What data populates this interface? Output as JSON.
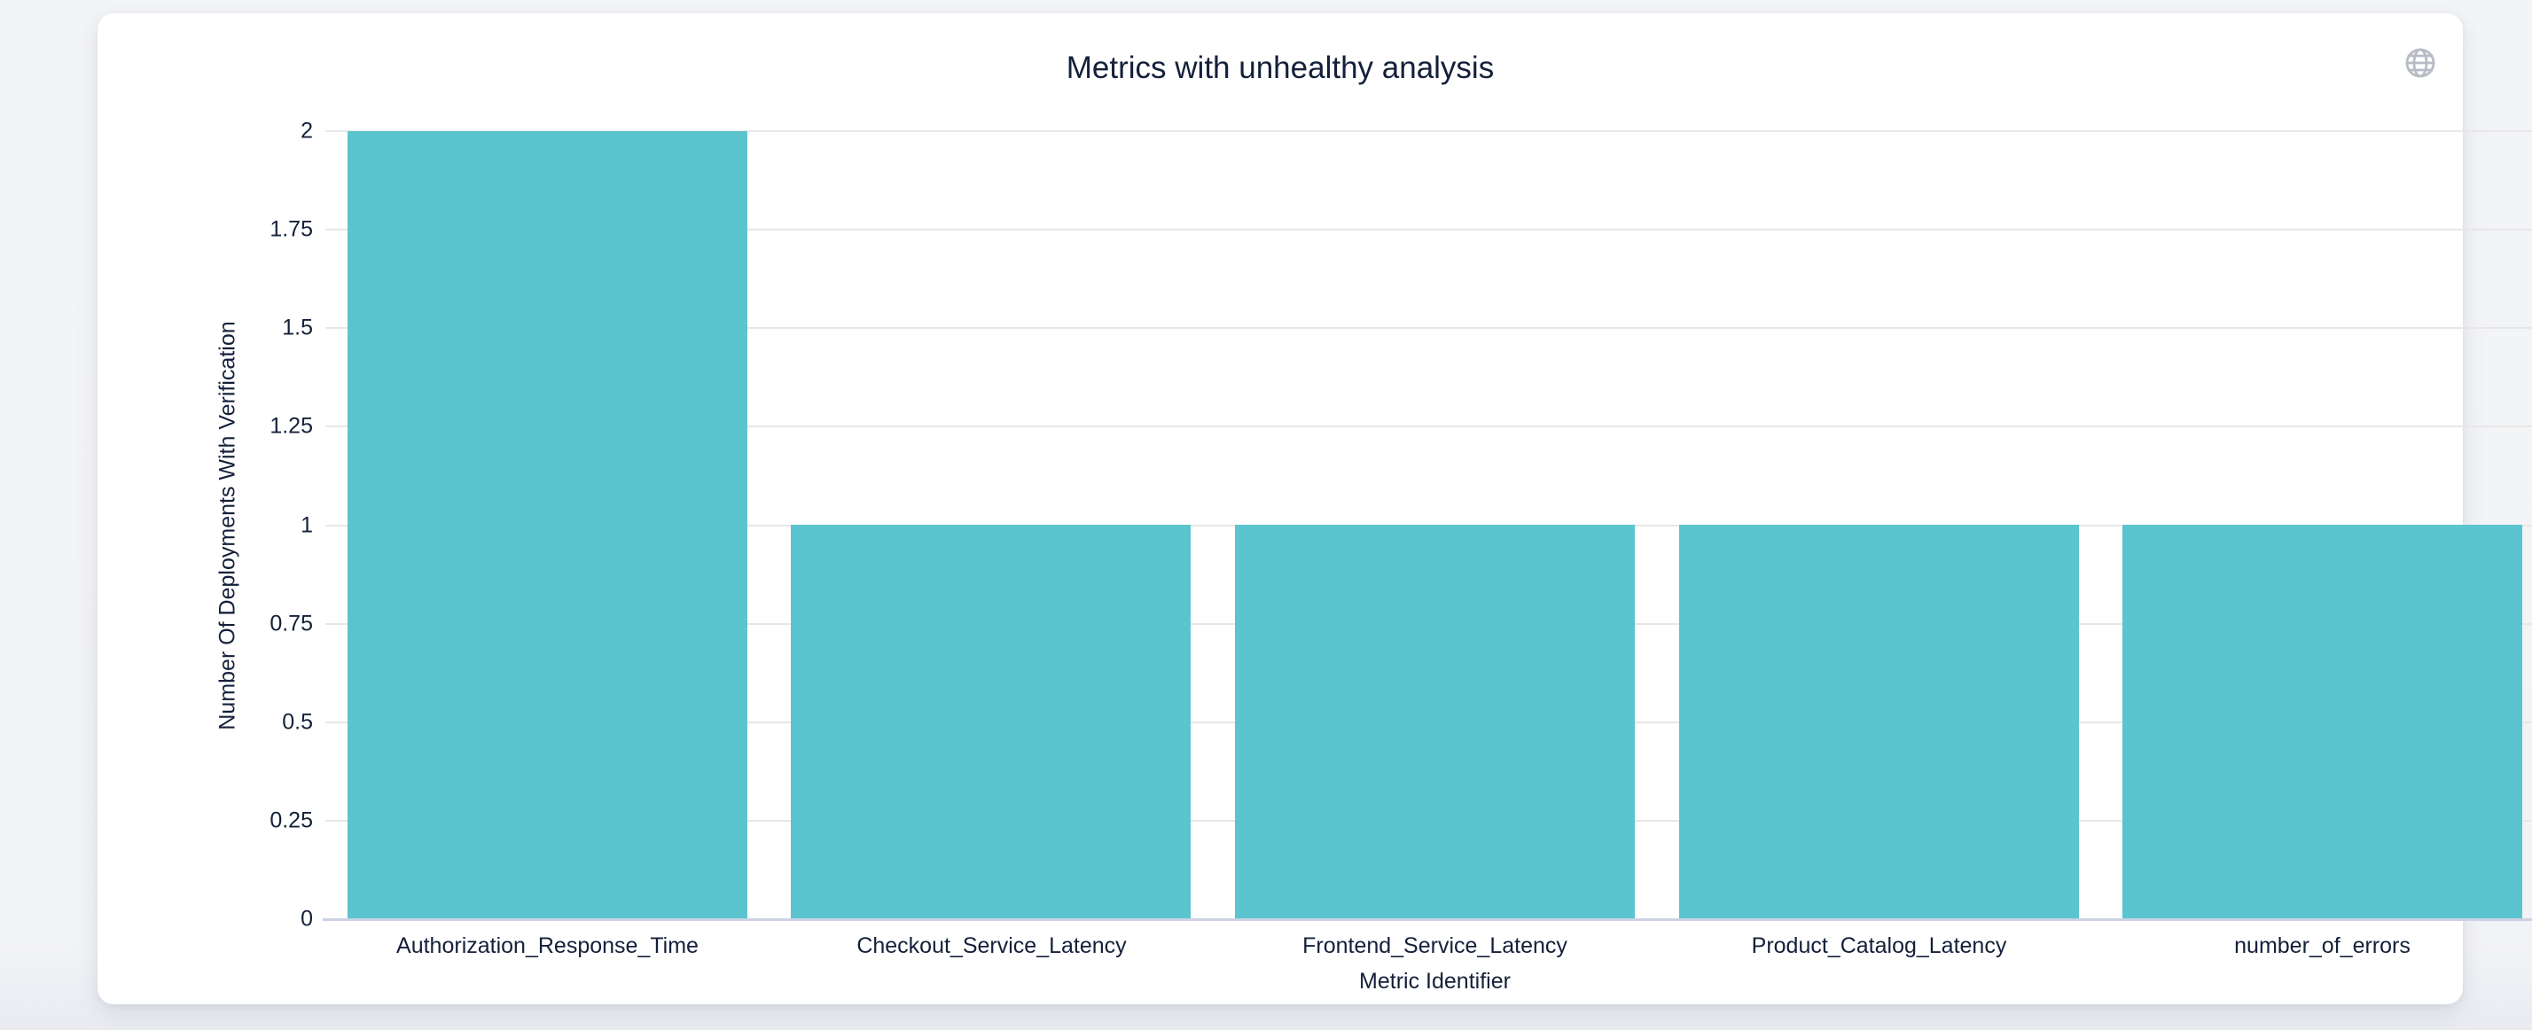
{
  "page": {
    "background_color": "#f2f3f6",
    "card_color": "#ffffff"
  },
  "toolbar": {
    "globe_icon_color": "#b7bbc5"
  },
  "chart_data": {
    "type": "bar",
    "title": "Metrics with unhealthy analysis",
    "xlabel": "Metric Identifier",
    "ylabel": "Number Of Deployments With Verification",
    "categories": [
      "Authorization_Response_Time",
      "Checkout_Service_Latency",
      "Frontend_Service_Latency",
      "Product_Catalog_Latency",
      "number_of_errors"
    ],
    "values": [
      2,
      1,
      1,
      1,
      1
    ],
    "ylim": [
      0,
      2
    ],
    "yticks": [
      0,
      0.25,
      0.5,
      0.75,
      1,
      1.25,
      1.5,
      1.75,
      2
    ],
    "ytick_labels": [
      "0",
      "0.25",
      "0.5",
      "0.75",
      "1",
      "1.25",
      "1.5",
      "1.75",
      "2"
    ],
    "grid": "horizontal gridlines on, bars drawn over gridlines",
    "legend": "none",
    "bar_color": "#5ac4cf",
    "gridline_color": "#e7e7e7",
    "axis_line_color": "#ccd2e3",
    "text_color": "#14203a"
  }
}
